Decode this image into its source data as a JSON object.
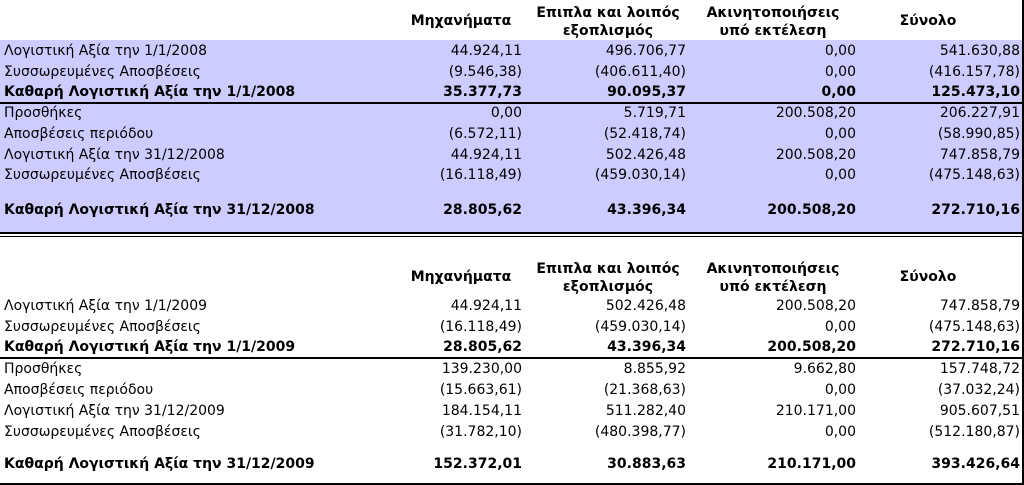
{
  "headers": {
    "machinery": "Μηχανήματα",
    "furniture_line1": "Επιπλα και λοιπός",
    "furniture_line2": "εξοπλισμός",
    "construction_line1": "Ακινητοποιήσεις",
    "construction_line2": "υπό εκτέλεση",
    "total": "Σύνολο"
  },
  "year2008": {
    "rows": [
      {
        "label": "Λογιστική Αξία την 1/1/2008",
        "values": [
          "44.924,11",
          "496.706,77",
          "0,00",
          "541.630,88"
        ]
      },
      {
        "label": "Συσσωρευμένες Αποσβέσεις",
        "values": [
          "(9.546,38)",
          "(406.611,40)",
          "0,00",
          "(416.157,78)"
        ]
      },
      {
        "label": "Καθαρή Λογιστική Αξία την 1/1/2008",
        "values": [
          "35.377,73",
          "90.095,37",
          "0,00",
          "125.473,10"
        ]
      },
      {
        "label": "Προσθήκες",
        "values": [
          "0,00",
          "5.719,71",
          "200.508,20",
          "206.227,91"
        ]
      },
      {
        "label": "Αποσβέσεις περιόδου",
        "values": [
          "(6.572,11)",
          "(52.418,74)",
          "0,00",
          "(58.990,85)"
        ]
      },
      {
        "label": "Λογιστική Αξία την 31/12/2008",
        "values": [
          "44.924,11",
          "502.426,48",
          "200.508,20",
          "747.858,79"
        ]
      },
      {
        "label": "Συσσωρευμένες Αποσβέσεις",
        "values": [
          "(16.118,49)",
          "(459.030,14)",
          "0,00",
          "(475.148,63)"
        ]
      },
      {
        "label": "Καθαρή Λογιστική Αξία την 31/12/2008",
        "values": [
          "28.805,62",
          "43.396,34",
          "200.508,20",
          "272.710,16"
        ]
      }
    ]
  },
  "year2009": {
    "rows": [
      {
        "label": "Λογιστική Αξία την 1/1/2009",
        "values": [
          "44.924,11",
          "502.426,48",
          "200.508,20",
          "747.858,79"
        ]
      },
      {
        "label": "Συσσωρευμένες Αποσβέσεις",
        "values": [
          "(16.118,49)",
          "(459.030,14)",
          "0,00",
          "(475.148,63)"
        ]
      },
      {
        "label": "Καθαρή Λογιστική Αξία την 1/1/2009",
        "values": [
          "28.805,62",
          "43.396,34",
          "200.508,20",
          "272.710,16"
        ]
      },
      {
        "label": "Προσθήκες",
        "values": [
          "139.230,00",
          "8.855,92",
          "9.662,80",
          "157.748,72"
        ]
      },
      {
        "label": "Αποσβέσεις περιόδου",
        "values": [
          "(15.663,61)",
          "(21.368,63)",
          "0,00",
          "(37.032,24)"
        ]
      },
      {
        "label": "Λογιστική Αξία την 31/12/2009",
        "values": [
          "184.154,11",
          "511.282,40",
          "210.171,00",
          "905.607,51"
        ]
      },
      {
        "label": "Συσσωρευμένες Αποσβέσεις",
        "values": [
          "(31.782,10)",
          "(480.398,77)",
          "0,00",
          "(512.180,87)"
        ]
      },
      {
        "label": "Καθαρή Λογιστική Αξία την 31/12/2009",
        "values": [
          "152.372,01",
          "30.883,63",
          "210.171,00",
          "393.426,64"
        ]
      }
    ]
  },
  "colors": {
    "band": "#ccccff"
  }
}
